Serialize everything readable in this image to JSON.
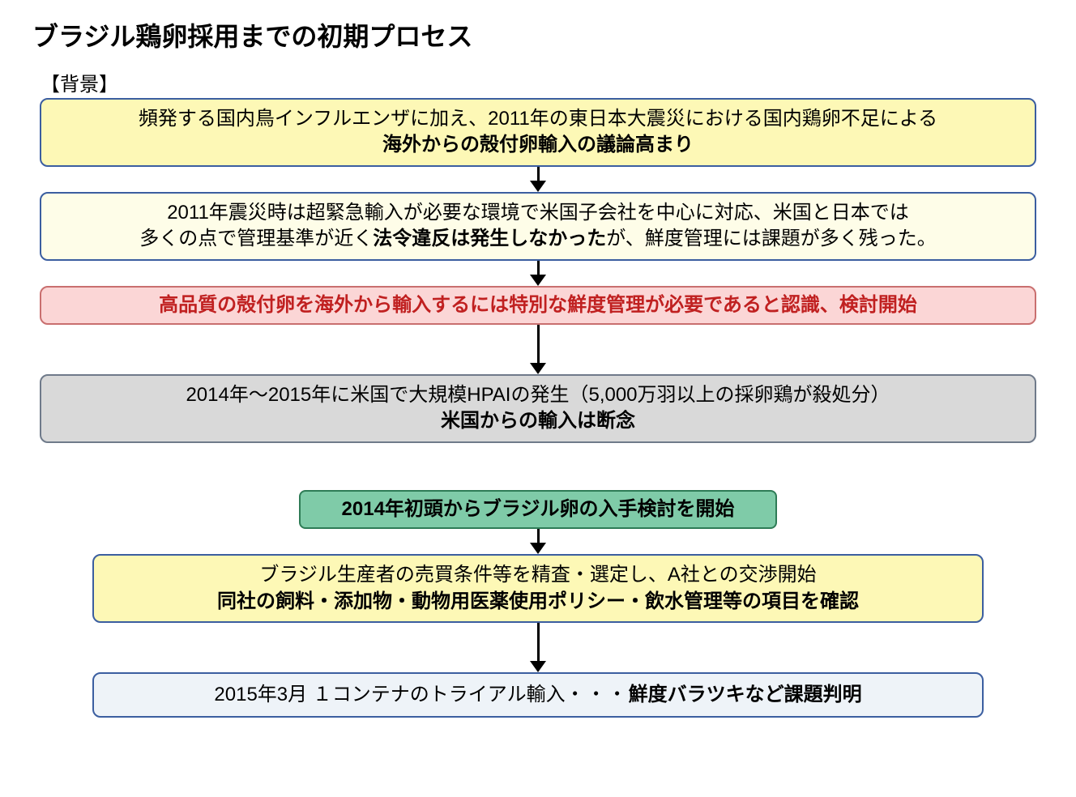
{
  "title": "ブラジル鶏卵採用までの初期プロセス",
  "section_label": "【背景】",
  "colors": {
    "yellow_bg": "#fdf8b6",
    "yellow_border": "#3b5ea0",
    "light_yellow_bg": "#fefde8",
    "light_yellow_border": "#3b5ea0",
    "pink_bg": "#fbd6d6",
    "pink_border": "#c96f6f",
    "gray_bg": "#d9d9d9",
    "gray_border": "#6f7a8a",
    "green_bg": "#7fcba8",
    "green_border": "#2e7c56",
    "pale_blue_bg": "#eef3f8",
    "pale_blue_border": "#3b5ea0",
    "text": "#000000",
    "highlight_text": "#c02020"
  },
  "boxes": {
    "b1_line1": "頻発する国内鳥インフルエンザに加え、2011年の東日本大震災における国内鶏卵不足による",
    "b1_line2": "海外からの殻付卵輸入の議論高まり",
    "b2_line1_a": "2011年震災時は超緊急輸入が必要な環境で米国子会社を中心に対応、米国と日本では",
    "b2_line2_a": "多くの点で管理基準が近く",
    "b2_line2_b": "法令違反は発生しなかった",
    "b2_line2_c": "が、鮮度管理には課題が多く残った。",
    "b3": "高品質の殻付卵を海外から輸入するには特別な鮮度管理が必要であると認識、検討開始",
    "b4_line1": "2014年～2015年に米国で大規模HPAIの発生（5,000万羽以上の採卵鶏が殺処分）",
    "b4_line2": "米国からの輸入は断念",
    "b5": "2014年初頭からブラジル卵の入手検討を開始",
    "b6_line1": "ブラジル生産者の売買条件等を精査・選定し、A社との交渉開始",
    "b6_line2": "同社の飼料・添加物・動物用医薬使用ポリシー・飲水管理等の項目を確認",
    "b7_a": "2015年3月  １コンテナのトライアル輸入",
    "b7_dots": "・・・",
    "b7_b": "鮮度バラツキなど課題判明"
  },
  "arrows": {
    "short": 18,
    "medium": 48
  }
}
